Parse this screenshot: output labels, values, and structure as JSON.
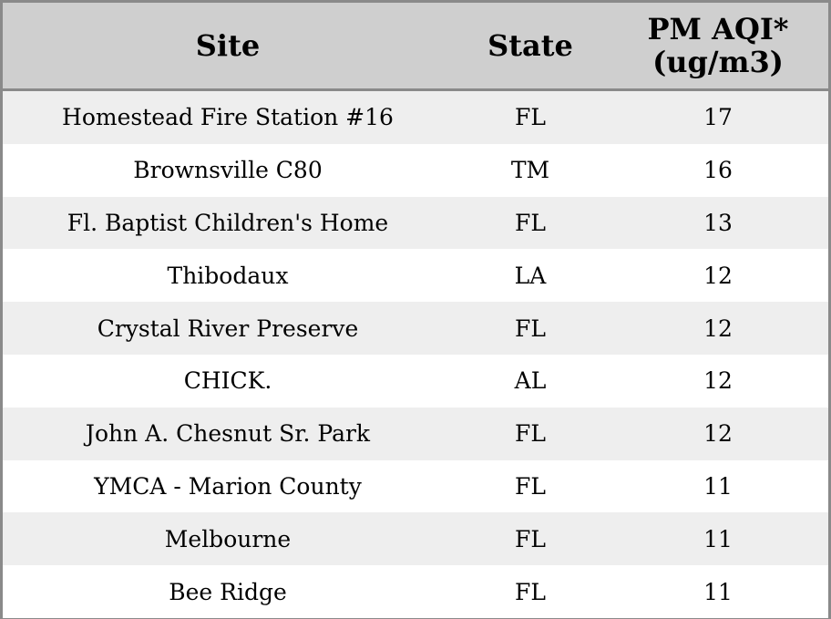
{
  "chart_data": {
    "type": "table",
    "columns": [
      "Site",
      "State",
      "PM AQI*\n(ug/m3)"
    ],
    "rows": [
      {
        "site": "Homestead Fire Station #16",
        "state": "FL",
        "value": "17"
      },
      {
        "site": "Brownsville C80",
        "state": "TM",
        "value": "16"
      },
      {
        "site": "Fl. Baptist Children's Home",
        "state": "FL",
        "value": "13"
      },
      {
        "site": "Thibodaux",
        "state": "LA",
        "value": "12"
      },
      {
        "site": "Crystal River Preserve",
        "state": "FL",
        "value": "12"
      },
      {
        "site": "CHICK.",
        "state": "AL",
        "value": "12"
      },
      {
        "site": "John A. Chesnut Sr. Park",
        "state": "FL",
        "value": "12"
      },
      {
        "site": "YMCA - Marion County",
        "state": "FL",
        "value": "11"
      },
      {
        "site": "Melbourne",
        "state": "FL",
        "value": "11"
      },
      {
        "site": "Bee Ridge",
        "state": "FL",
        "value": "11"
      }
    ]
  },
  "colors": {
    "header_bg": "#cfcfcf",
    "row_alt_bg": "#eeeeee",
    "row_bg": "#ffffff",
    "border": "#8a8a8a"
  }
}
